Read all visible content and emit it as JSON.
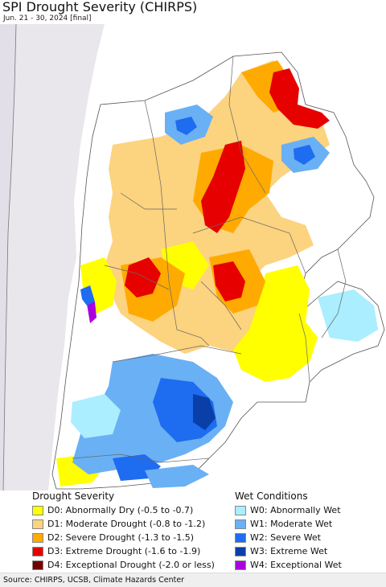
{
  "title": "SPI Drought Severity (CHIRPS)",
  "subtitle": "Jun. 21 - 30, 2024 [final]",
  "legend_drought": {
    "title": "Drought Severity",
    "items": [
      {
        "label": "D0: Abnormally Dry (-0.5 to -0.7)",
        "color": "#ffff00"
      },
      {
        "label": "D1: Moderate Drought (-0.8 to -1.2)",
        "color": "#fcd37f"
      },
      {
        "label": "D2: Severe Drought (-1.3 to -1.5)",
        "color": "#ffaa00"
      },
      {
        "label": "D3: Extreme Drought (-1.6 to -1.9)",
        "color": "#e60000"
      },
      {
        "label": "D4: Exceptional Drought (-2.0 or less)",
        "color": "#730000"
      }
    ]
  },
  "legend_wet": {
    "title": "Wet Conditions",
    "items": [
      {
        "label": "W0: Abnormally Wet",
        "color": "#aaeeff"
      },
      {
        "label": "W1: Moderate Wet",
        "color": "#6ab0f4"
      },
      {
        "label": "W2: Severe Wet",
        "color": "#1e6cf0"
      },
      {
        "label": "W3: Extreme Wet",
        "color": "#0a3fa8"
      },
      {
        "label": "W4: Exceptional Wet",
        "color": "#aa00dd"
      }
    ]
  },
  "source": "Source: CHIRPS, UCSB, Climate Hazards Center",
  "colors": {
    "ocean": "#ffffff",
    "land_outside": "#e9e6ec",
    "boundary": "#666666"
  }
}
